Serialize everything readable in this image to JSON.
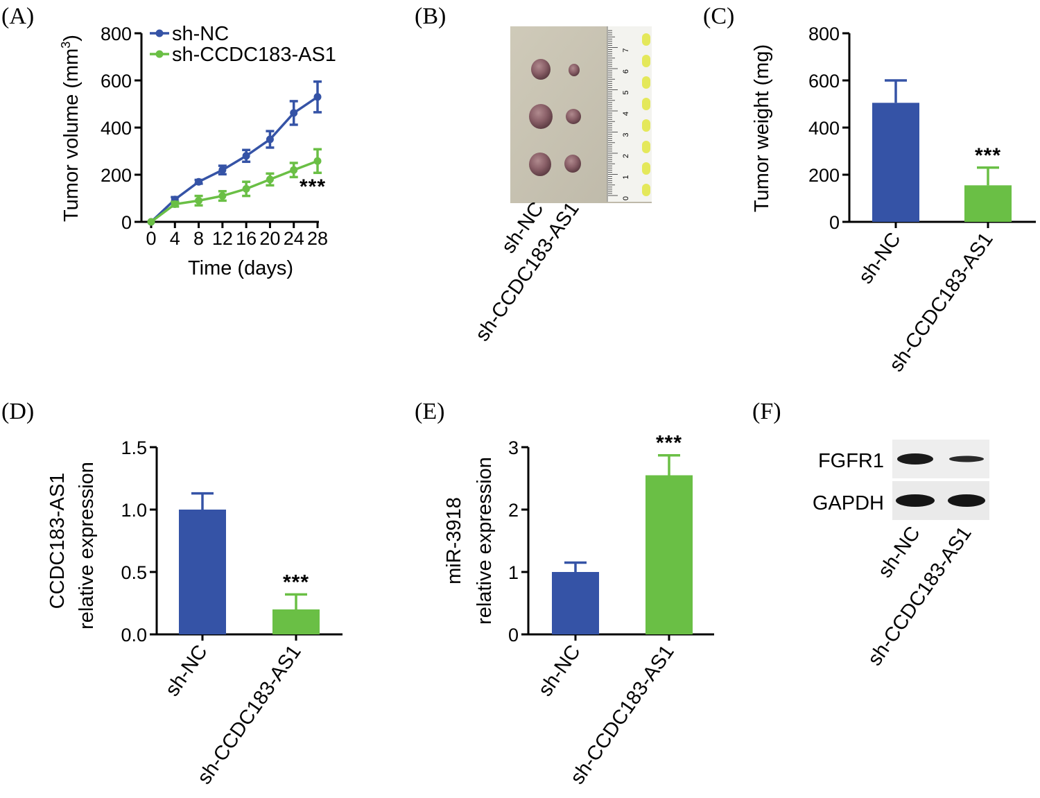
{
  "colors": {
    "blue": "#3553a6",
    "green": "#6abf45"
  },
  "panels": {
    "a": "(A)",
    "b": "(B)",
    "c": "(C)",
    "d": "(D)",
    "e": "(E)",
    "f": "(F)"
  },
  "chart_data": [
    {
      "panel": "A",
      "type": "line",
      "xlabel": "Time (days)",
      "ylabel": "Tumor volume (mm",
      "ylabel_sup": "3",
      "ylabel_close": ")",
      "x": [
        0,
        4,
        8,
        12,
        16,
        20,
        24,
        28
      ],
      "xticks": [
        "0",
        "4",
        "8",
        "12",
        "16",
        "20",
        "24",
        "28"
      ],
      "yticks": [
        "0",
        "200",
        "400",
        "600",
        "800"
      ],
      "ylim": [
        0,
        800
      ],
      "series": [
        {
          "name": "sh-NC",
          "color": "#3553a6",
          "values": [
            0,
            95,
            170,
            220,
            280,
            350,
            462,
            530
          ],
          "errors": [
            0,
            10,
            8,
            18,
            25,
            35,
            50,
            65
          ]
        },
        {
          "name": "sh-CCDC183-AS1",
          "color": "#6abf45",
          "values": [
            0,
            75,
            90,
            110,
            140,
            180,
            220,
            258
          ],
          "errors": [
            0,
            10,
            20,
            20,
            30,
            25,
            30,
            50
          ]
        }
      ],
      "annotation": "***",
      "legend": "top-left"
    },
    {
      "panel": "C",
      "type": "bar",
      "ylabel": "Tumor weight (mg)",
      "categories": [
        "sh-NC",
        "sh-CCDC183-AS1"
      ],
      "values": [
        505,
        155
      ],
      "errors": [
        95,
        75
      ],
      "yticks": [
        "0",
        "200",
        "400",
        "600",
        "800"
      ],
      "ylim": [
        0,
        800
      ],
      "annotations": [
        "",
        "***"
      ]
    },
    {
      "panel": "D",
      "type": "bar",
      "ylabel": "CCDC183-AS1",
      "ylabel2": "relative expression",
      "categories": [
        "sh-NC",
        "sh-CCDC183-AS1"
      ],
      "values": [
        1.0,
        0.2
      ],
      "errors": [
        0.13,
        0.12
      ],
      "yticks": [
        "0.0",
        "0.5",
        "1.0",
        "1.5"
      ],
      "ylim": [
        0,
        1.5
      ],
      "annotations": [
        "",
        "***"
      ]
    },
    {
      "panel": "E",
      "type": "bar",
      "ylabel": "miR-3918",
      "ylabel2": "relative expression",
      "categories": [
        "sh-NC",
        "sh-CCDC183-AS1"
      ],
      "values": [
        1.0,
        2.55
      ],
      "errors": [
        0.15,
        0.32
      ],
      "yticks": [
        "0",
        "1",
        "2",
        "3"
      ],
      "ylim": [
        0,
        3
      ],
      "annotations": [
        "",
        "***"
      ]
    }
  ],
  "photo_b": {
    "labels": [
      "sh-NC",
      "sh-CCDC183-AS1"
    ],
    "ruler_digits": [
      "0",
      "1",
      "2",
      "3",
      "4",
      "5",
      "6",
      "7"
    ]
  },
  "blot_f": {
    "rows": [
      "FGFR1",
      "GAPDH"
    ],
    "labels": [
      "sh-NC",
      "sh-CCDC183-AS1"
    ]
  }
}
